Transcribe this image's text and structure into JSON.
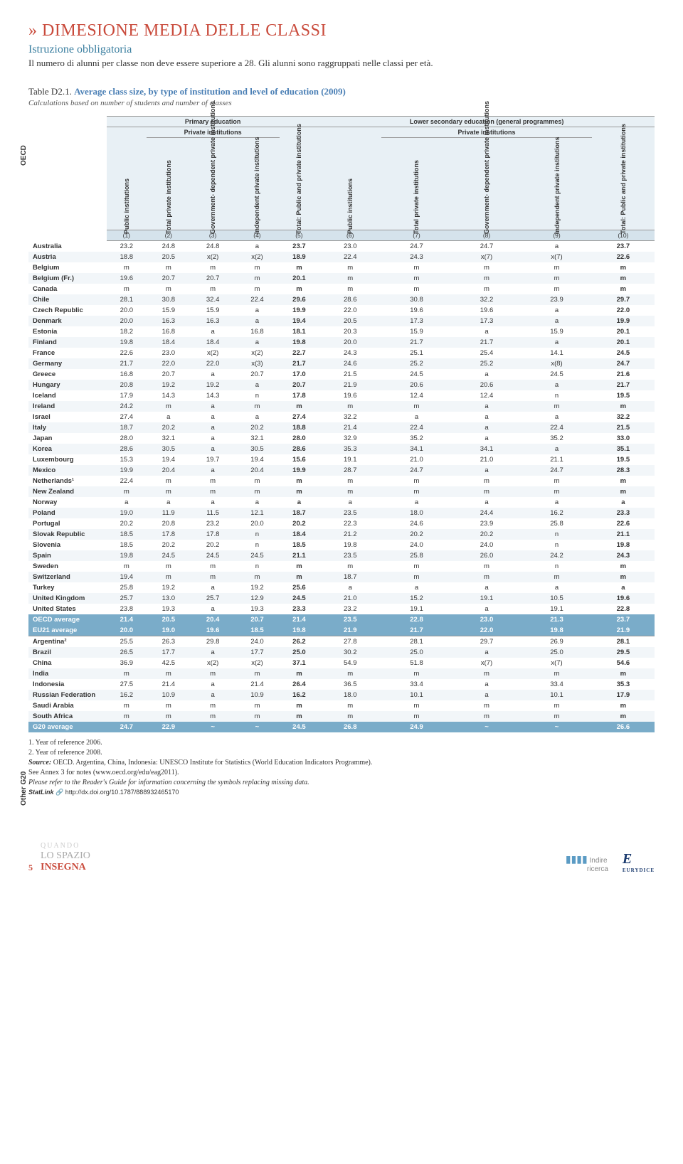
{
  "header": {
    "caret": "»",
    "title": "DIMESIONE MEDIA DELLE CLASSI",
    "subtitle": "Istruzione obbligatoria",
    "intro": "Il numero di alunni per classe non deve essere superiore a 28. Gli alunni sono raggruppati nelle classi per età."
  },
  "table": {
    "ref": "Table D2.1.",
    "title": "Average class size, by type of institution and level of education (2009)",
    "calc": "Calculations based on number of students and number of classes",
    "top_headers": {
      "primary": "Primary education",
      "lower": "Lower secondary education (general programmes)",
      "private": "Private institutions"
    },
    "col_rotated": [
      "Public institutions",
      "Total private institutions",
      "Government- dependent private institutions",
      "Independent private institutions",
      "Total: Public and private institutions",
      "Public institutions",
      "Total private institutions",
      "Government- dependent private institutions",
      "Independent private institutions",
      "Total: Public and private institutions"
    ],
    "col_nums": [
      "(1)",
      "(2)",
      "(3)",
      "(4)",
      "(5)",
      "(6)",
      "(7)",
      "(8)",
      "(9)",
      "(10)"
    ],
    "group_oecd": "OECD",
    "group_g20": "Other G20",
    "rows_oecd": [
      {
        "c": "Australia",
        "v": [
          "23.2",
          "24.8",
          "24.8",
          "a",
          "23.7",
          "23.0",
          "24.7",
          "24.7",
          "a",
          "23.7"
        ]
      },
      {
        "c": "Austria",
        "v": [
          "18.8",
          "20.5",
          "x(2)",
          "x(2)",
          "18.9",
          "22.4",
          "24.3",
          "x(7)",
          "x(7)",
          "22.6"
        ]
      },
      {
        "c": "Belgium",
        "v": [
          "m",
          "m",
          "m",
          "m",
          "m",
          "m",
          "m",
          "m",
          "m",
          "m"
        ]
      },
      {
        "c": "Belgium (Fr.)",
        "v": [
          "19.6",
          "20.7",
          "20.7",
          "m",
          "20.1",
          "m",
          "m",
          "m",
          "m",
          "m"
        ]
      },
      {
        "c": "Canada",
        "v": [
          "m",
          "m",
          "m",
          "m",
          "m",
          "m",
          "m",
          "m",
          "m",
          "m"
        ]
      },
      {
        "c": "Chile",
        "v": [
          "28.1",
          "30.8",
          "32.4",
          "22.4",
          "29.6",
          "28.6",
          "30.8",
          "32.2",
          "23.9",
          "29.7"
        ]
      },
      {
        "c": "Czech Republic",
        "v": [
          "20.0",
          "15.9",
          "15.9",
          "a",
          "19.9",
          "22.0",
          "19.6",
          "19.6",
          "a",
          "22.0"
        ]
      },
      {
        "c": "Denmark",
        "v": [
          "20.0",
          "16.3",
          "16.3",
          "a",
          "19.4",
          "20.5",
          "17.3",
          "17.3",
          "a",
          "19.9"
        ]
      },
      {
        "c": "Estonia",
        "v": [
          "18.2",
          "16.8",
          "a",
          "16.8",
          "18.1",
          "20.3",
          "15.9",
          "a",
          "15.9",
          "20.1"
        ]
      },
      {
        "c": "Finland",
        "v": [
          "19.8",
          "18.4",
          "18.4",
          "a",
          "19.8",
          "20.0",
          "21.7",
          "21.7",
          "a",
          "20.1"
        ]
      },
      {
        "c": "France",
        "v": [
          "22.6",
          "23.0",
          "x(2)",
          "x(2)",
          "22.7",
          "24.3",
          "25.1",
          "25.4",
          "14.1",
          "24.5"
        ]
      },
      {
        "c": "Germany",
        "v": [
          "21.7",
          "22.0",
          "22.0",
          "x(3)",
          "21.7",
          "24.6",
          "25.2",
          "25.2",
          "x(8)",
          "24.7"
        ]
      },
      {
        "c": "Greece",
        "v": [
          "16.8",
          "20.7",
          "a",
          "20.7",
          "17.0",
          "21.5",
          "24.5",
          "a",
          "24.5",
          "21.6"
        ]
      },
      {
        "c": "Hungary",
        "v": [
          "20.8",
          "19.2",
          "19.2",
          "a",
          "20.7",
          "21.9",
          "20.6",
          "20.6",
          "a",
          "21.7"
        ]
      },
      {
        "c": "Iceland",
        "v": [
          "17.9",
          "14.3",
          "14.3",
          "n",
          "17.8",
          "19.6",
          "12.4",
          "12.4",
          "n",
          "19.5"
        ]
      },
      {
        "c": "Ireland",
        "v": [
          "24.2",
          "m",
          "a",
          "m",
          "m",
          "m",
          "m",
          "a",
          "m",
          "m"
        ]
      },
      {
        "c": "Israel",
        "v": [
          "27.4",
          "a",
          "a",
          "a",
          "27.4",
          "32.2",
          "a",
          "a",
          "a",
          "32.2"
        ]
      },
      {
        "c": "Italy",
        "v": [
          "18.7",
          "20.2",
          "a",
          "20.2",
          "18.8",
          "21.4",
          "22.4",
          "a",
          "22.4",
          "21.5"
        ]
      },
      {
        "c": "Japan",
        "v": [
          "28.0",
          "32.1",
          "a",
          "32.1",
          "28.0",
          "32.9",
          "35.2",
          "a",
          "35.2",
          "33.0"
        ]
      },
      {
        "c": "Korea",
        "v": [
          "28.6",
          "30.5",
          "a",
          "30.5",
          "28.6",
          "35.3",
          "34.1",
          "34.1",
          "a",
          "35.1"
        ]
      },
      {
        "c": "Luxembourg",
        "v": [
          "15.3",
          "19.4",
          "19.7",
          "19.4",
          "15.6",
          "19.1",
          "21.0",
          "21.0",
          "21.1",
          "19.5"
        ]
      },
      {
        "c": "Mexico",
        "v": [
          "19.9",
          "20.4",
          "a",
          "20.4",
          "19.9",
          "28.7",
          "24.7",
          "a",
          "24.7",
          "28.3"
        ]
      },
      {
        "c": "Netherlands¹",
        "v": [
          "22.4",
          "m",
          "m",
          "m",
          "m",
          "m",
          "m",
          "m",
          "m",
          "m"
        ]
      },
      {
        "c": "New Zealand",
        "v": [
          "m",
          "m",
          "m",
          "m",
          "m",
          "m",
          "m",
          "m",
          "m",
          "m"
        ]
      },
      {
        "c": "Norway",
        "v": [
          "a",
          "a",
          "a",
          "a",
          "a",
          "a",
          "a",
          "a",
          "a",
          "a"
        ]
      },
      {
        "c": "Poland",
        "v": [
          "19.0",
          "11.9",
          "11.5",
          "12.1",
          "18.7",
          "23.5",
          "18.0",
          "24.4",
          "16.2",
          "23.3"
        ]
      },
      {
        "c": "Portugal",
        "v": [
          "20.2",
          "20.8",
          "23.2",
          "20.0",
          "20.2",
          "22.3",
          "24.6",
          "23.9",
          "25.8",
          "22.6"
        ]
      },
      {
        "c": "Slovak Republic",
        "v": [
          "18.5",
          "17.8",
          "17.8",
          "n",
          "18.4",
          "21.2",
          "20.2",
          "20.2",
          "n",
          "21.1"
        ]
      },
      {
        "c": "Slovenia",
        "v": [
          "18.5",
          "20.2",
          "20.2",
          "n",
          "18.5",
          "19.8",
          "24.0",
          "24.0",
          "n",
          "19.8"
        ]
      },
      {
        "c": "Spain",
        "v": [
          "19.8",
          "24.5",
          "24.5",
          "24.5",
          "21.1",
          "23.5",
          "25.8",
          "26.0",
          "24.2",
          "24.3"
        ]
      },
      {
        "c": "Sweden",
        "v": [
          "m",
          "m",
          "m",
          "n",
          "m",
          "m",
          "m",
          "m",
          "n",
          "m"
        ]
      },
      {
        "c": "Switzerland",
        "v": [
          "19.4",
          "m",
          "m",
          "m",
          "m",
          "18.7",
          "m",
          "m",
          "m",
          "m"
        ]
      },
      {
        "c": "Turkey",
        "v": [
          "25.8",
          "19.2",
          "a",
          "19.2",
          "25.6",
          "a",
          "a",
          "a",
          "a",
          "a"
        ]
      },
      {
        "c": "United Kingdom",
        "v": [
          "25.7",
          "13.0",
          "25.7",
          "12.9",
          "24.5",
          "21.0",
          "15.2",
          "19.1",
          "10.5",
          "19.6"
        ]
      },
      {
        "c": "United States",
        "v": [
          "23.8",
          "19.3",
          "a",
          "19.3",
          "23.3",
          "23.2",
          "19.1",
          "a",
          "19.1",
          "22.8"
        ]
      }
    ],
    "avg_rows": [
      {
        "c": "OECD average",
        "v": [
          "21.4",
          "20.5",
          "20.4",
          "20.7",
          "21.4",
          "23.5",
          "22.8",
          "23.0",
          "21.3",
          "23.7"
        ]
      },
      {
        "c": "EU21 average",
        "v": [
          "20.0",
          "19.0",
          "19.6",
          "18.5",
          "19.8",
          "21.9",
          "21.7",
          "22.0",
          "19.8",
          "21.9"
        ]
      }
    ],
    "rows_g20": [
      {
        "c": "Argentina²",
        "v": [
          "25.5",
          "26.3",
          "29.8",
          "24.0",
          "26.2",
          "27.8",
          "28.1",
          "29.7",
          "26.9",
          "28.1"
        ]
      },
      {
        "c": "Brazil",
        "v": [
          "26.5",
          "17.7",
          "a",
          "17.7",
          "25.0",
          "30.2",
          "25.0",
          "a",
          "25.0",
          "29.5"
        ]
      },
      {
        "c": "China",
        "v": [
          "36.9",
          "42.5",
          "x(2)",
          "x(2)",
          "37.1",
          "54.9",
          "51.8",
          "x(7)",
          "x(7)",
          "54.6"
        ]
      },
      {
        "c": "India",
        "v": [
          "m",
          "m",
          "m",
          "m",
          "m",
          "m",
          "m",
          "m",
          "m",
          "m"
        ]
      },
      {
        "c": "Indonesia",
        "v": [
          "27.5",
          "21.4",
          "a",
          "21.4",
          "26.4",
          "36.5",
          "33.4",
          "a",
          "33.4",
          "35.3"
        ]
      },
      {
        "c": "Russian Federation",
        "v": [
          "16.2",
          "10.9",
          "a",
          "10.9",
          "16.2",
          "18.0",
          "10.1",
          "a",
          "10.1",
          "17.9"
        ]
      },
      {
        "c": "Saudi Arabia",
        "v": [
          "m",
          "m",
          "m",
          "m",
          "m",
          "m",
          "m",
          "m",
          "m",
          "m"
        ]
      },
      {
        "c": "South Africa",
        "v": [
          "m",
          "m",
          "m",
          "m",
          "m",
          "m",
          "m",
          "m",
          "m",
          "m"
        ]
      }
    ],
    "g20_avg": {
      "c": "G20 average",
      "v": [
        "24.7",
        "22.9",
        "~",
        "~",
        "24.5",
        "26.8",
        "24.9",
        "~",
        "~",
        "26.6"
      ]
    }
  },
  "footnotes": {
    "n1": "1. Year of reference 2006.",
    "n2": "2. Year of reference 2008.",
    "src": "Source:",
    "src_text": " OECD. Argentina, China, Indonesia: UNESCO Institute for Statistics (World Education Indicators Programme).",
    "annex": "See Annex 3 for notes (www.oecd.org/edu/eag2011).",
    "reader": "Please refer to the Reader's Guide for information concerning the symbols replacing missing data.",
    "statlink_label": "StatLink",
    "statlink_url": "http://dx.doi.org/10.1787/888932465170"
  },
  "footer": {
    "page": "5",
    "quando": "QUANDO",
    "lospazio": "LO SPAZIO",
    "insegna": "INSEGNA",
    "indire": "Indire",
    "ricerca": "ricerca",
    "eurydice": "E",
    "eurydice_label": "EURYDICE"
  }
}
